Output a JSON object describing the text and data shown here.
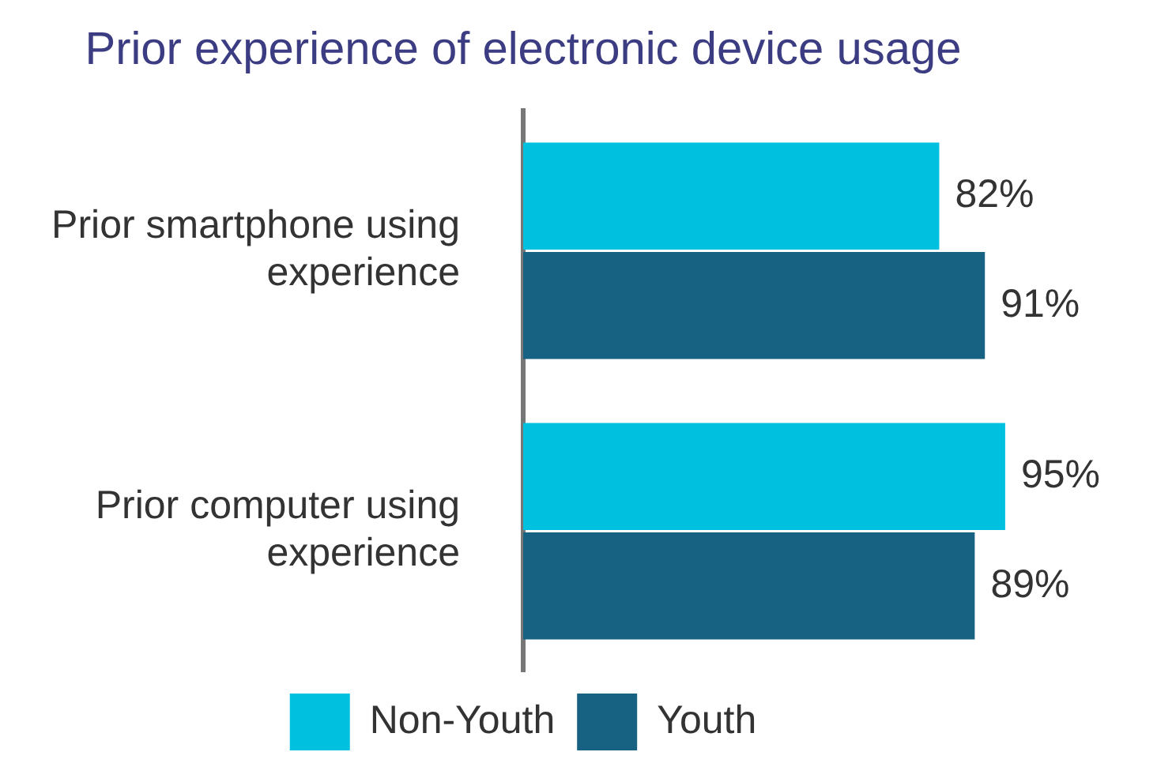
{
  "chart_data": {
    "type": "bar",
    "orientation": "horizontal",
    "title": "Prior experience of electronic device usage",
    "categories": [
      "Prior smartphone using experience",
      "Prior computer using experience"
    ],
    "series": [
      {
        "name": "Non-Youth",
        "color": "#00c0e0",
        "values": [
          82,
          95
        ],
        "value_labels": [
          "82%",
          "95%"
        ]
      },
      {
        "name": "Youth",
        "color": "#176283",
        "values": [
          91,
          89
        ],
        "value_labels": [
          "91%",
          "89%"
        ]
      }
    ],
    "grid": false,
    "legend": "bottom"
  }
}
